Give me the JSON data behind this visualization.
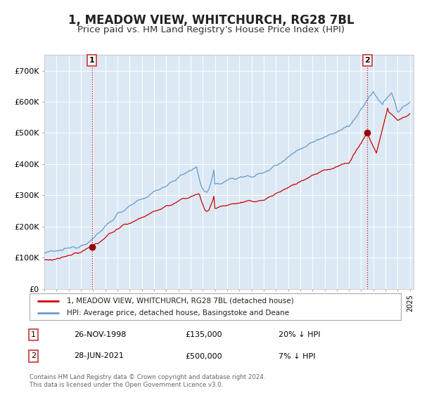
{
  "title": "1, MEADOW VIEW, WHITCHURCH, RG28 7BL",
  "subtitle": "Price paid vs. HM Land Registry's House Price Index (HPI)",
  "bg_color": "#dce9f5",
  "fig_bg_color": "#ffffff",
  "red_line_label": "1, MEADOW VIEW, WHITCHURCH, RG28 7BL (detached house)",
  "blue_line_label": "HPI: Average price, detached house, Basingstoke and Deane",
  "sale1_date": "26-NOV-1998",
  "sale1_price": 135000,
  "sale1_pct": "20%",
  "sale1_dir": "↓",
  "sale2_date": "28-JUN-2021",
  "sale2_price": 500000,
  "sale2_pct": "7%",
  "sale2_dir": "↓",
  "footer": "Contains HM Land Registry data © Crown copyright and database right 2024.\nThis data is licensed under the Open Government Licence v3.0.",
  "ylim": [
    0,
    750000
  ],
  "yticks": [
    0,
    100000,
    200000,
    300000,
    400000,
    500000,
    600000,
    700000
  ],
  "ytick_labels": [
    "£0",
    "£100K",
    "£200K",
    "£300K",
    "£400K",
    "£500K",
    "£600K",
    "£700K"
  ],
  "sale1_x": 1998.9,
  "sale2_x": 2021.5,
  "red_color": "#cc0000",
  "blue_color": "#6699cc",
  "dot_color": "#990000",
  "vline_color": "#cc0000",
  "box_color": "#cc3333",
  "grid_color": "#ffffff",
  "title_fontsize": 12,
  "subtitle_fontsize": 9.5
}
